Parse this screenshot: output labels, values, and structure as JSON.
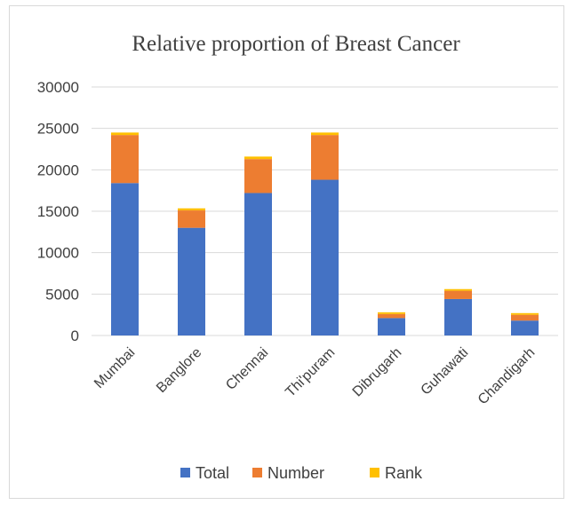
{
  "chart_data": {
    "type": "bar",
    "stacked": true,
    "title": "Relative proportion of Breast Cancer",
    "xlabel": "",
    "ylabel": "",
    "categories": [
      "Mumbai",
      "Banglore",
      "Chennai",
      "Thi'puram",
      "Dibrugarh",
      "Guhawati",
      "Chandigarh"
    ],
    "series": [
      {
        "name": "Total",
        "color": "#4472c4",
        "values": [
          18400,
          13000,
          17200,
          18800,
          2100,
          4400,
          1800
        ]
      },
      {
        "name": "Number",
        "color": "#ed7d31",
        "values": [
          5800,
          2100,
          4100,
          5400,
          500,
          1000,
          700
        ]
      },
      {
        "name": "Rank",
        "color": "#ffc000",
        "values": [
          300,
          250,
          300,
          300,
          200,
          200,
          200
        ]
      }
    ],
    "ylim": [
      0,
      30000
    ],
    "yticks": [
      "0",
      "5000",
      "10000",
      "15000",
      "20000",
      "25000",
      "30000"
    ],
    "grid": true,
    "legend_position": "bottom"
  }
}
